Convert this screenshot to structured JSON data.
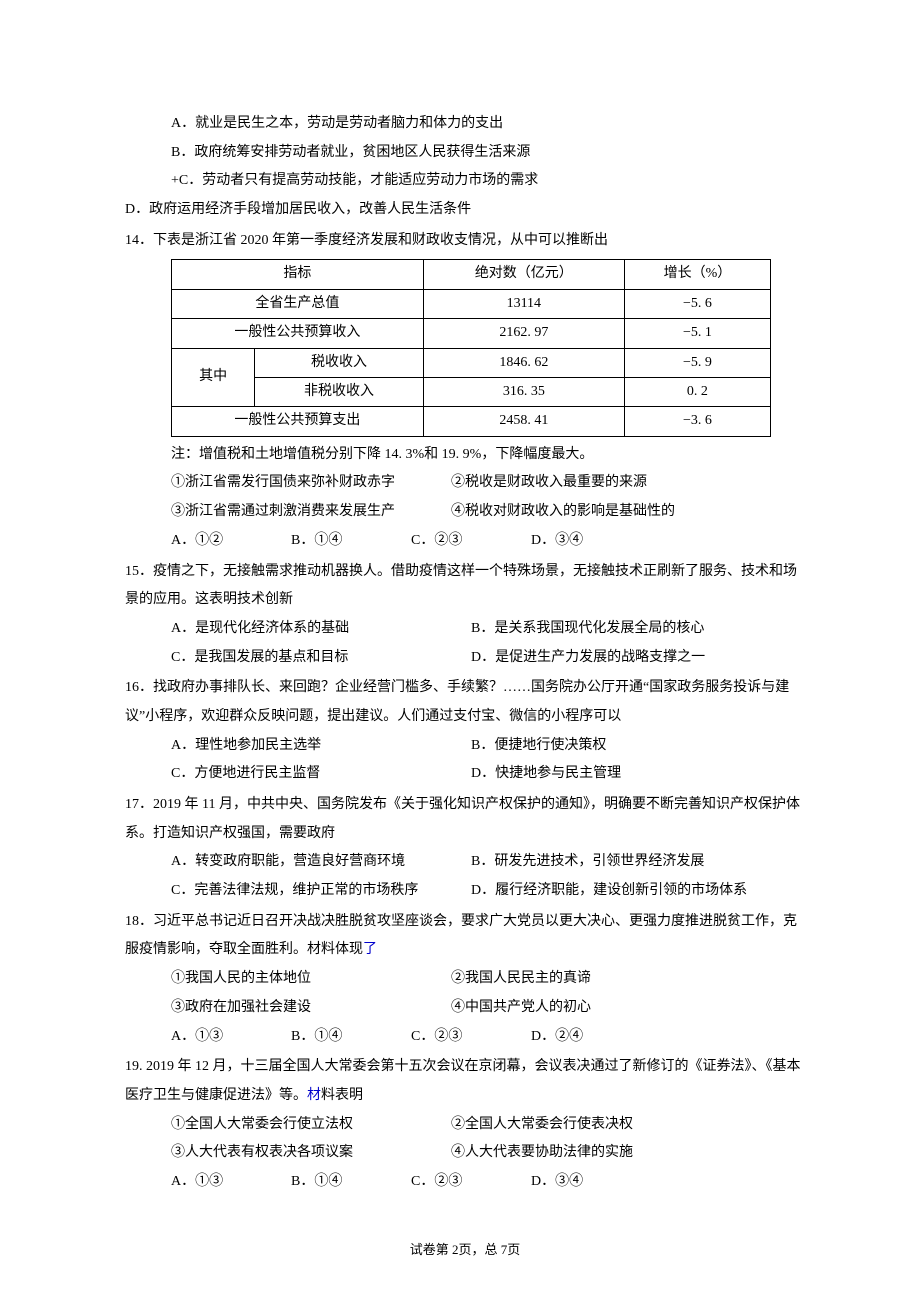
{
  "pre_options": {
    "a": "A．就业是民生之本，劳动是劳动者脑力和体力的支出",
    "b": "B．政府统筹安排劳动者就业，贫困地区人民获得生活来源",
    "c": "+C．劳动者只有提高劳动技能，才能适应劳动力市场的需求",
    "d": "D．政府运用经济手段增加居民收入，改善人民生活条件"
  },
  "q14": {
    "stem": "14．下表是浙江省 2020 年第一季度经济发展和财政收支情况，从中可以推断出",
    "table": {
      "headers": [
        "指标",
        "绝对数（亿元）",
        "增长（%）"
      ],
      "rows": [
        {
          "label": "全省生产总值",
          "abs": "13114",
          "growth": "−5. 6"
        },
        {
          "label": "一般性公共预算收入",
          "abs": "2162. 97",
          "growth": "−5. 1"
        },
        {
          "label_group": "其中",
          "sub": "税收收入",
          "abs": "1846. 62",
          "growth": "−5. 9"
        },
        {
          "sub": "非税收收入",
          "abs": "316. 35",
          "growth": "0. 2"
        },
        {
          "label": "一般性公共预算支出",
          "abs": "2458. 41",
          "growth": "−3. 6"
        }
      ]
    },
    "note": "注：增值税和土地增值税分别下降 14. 3%和 19. 9%，下降幅度最大。",
    "items": {
      "i1": "①浙江省需发行国债来弥补财政赤字",
      "i2": "②税收是财政收入最重要的来源",
      "i3": "③浙江省需通过刺激消费来发展生产",
      "i4": "④税收对财政收入的影响是基础性的"
    },
    "opts": {
      "a": "A．①②",
      "b": "B．①④",
      "c": "C．②③",
      "d": "D．③④"
    }
  },
  "q15": {
    "stem": "15．疫情之下，无接触需求推动机器换人。借助疫情这样一个特殊场景，无接触技术正刷新了服务、技术和场景的应用。这表明技术创新",
    "opts": {
      "a": "A．是现代化经济体系的基础",
      "b": "B．是关系我国现代化发展全局的核心",
      "c": "C．是我国发展的基点和目标",
      "d": "D．是促进生产力发展的战略支撑之一"
    }
  },
  "q16": {
    "stem": "16．找政府办事排队长、来回跑？企业经营门槛多、手续繁？……国务院办公厅开通“国家政务服务投诉与建议”小程序，欢迎群众反映问题，提出建议。人们通过支付宝、微信的小程序可以",
    "opts": {
      "a": "A．理性地参加民主选举",
      "b": "B．便捷地行使决策权",
      "c": "C．方便地进行民主监督",
      "d": "D．快捷地参与民主管理"
    }
  },
  "q17": {
    "stem": "17．2019 年 11 月，中共中央、国务院发布《关于强化知识产权保护的通知》，明确要不断完善知识产权保护体系。打造知识产权强国，需要政府",
    "opts": {
      "a": "A．转变政府职能，营造良好营商环境",
      "b": "B．研发先进技术，引领世界经济发展",
      "c": "C．完善法律法规，维护正常的市场秩序",
      "d": "D．履行经济职能，建设创新引领的市场体系"
    }
  },
  "q18": {
    "stem_pre": "18．习近平总书记近日召开决战决胜脱贫攻坚座谈会，要求广大党员以更大决心、更强力度推进脱贫工作，克服疫情影响，夺取全面胜利。材料体现",
    "stem_blue": "了",
    "items": {
      "i1": "①我国人民的主体地位",
      "i2": "②我国人民民主的真谛",
      "i3": "③政府在加强社会建设",
      "i4": "④中国共产党人的初心"
    },
    "opts": {
      "a": "A．①③",
      "b": "B．①④",
      "c": "C．②③",
      "d": "D．②④"
    }
  },
  "q19": {
    "stem_pre": "19. 2019 年 12 月，十三届全国人大常委会第十五次会议在京闭幕，会议表决通过了新修订的《证券法》、《基本医疗卫生与健康促进法》等。",
    "stem_blue": "材",
    "stem_post": "料表明",
    "items": {
      "i1": "①全国人大常委会行使立法权",
      "i2": "②全国人大常委会行使表决权",
      "i3": "③人大代表有权表决各项议案",
      "i4": "④人大代表要协助法律的实施"
    },
    "opts": {
      "a": "A．①③",
      "b": "B．①④",
      "c": "C．②③",
      "d": "D．③④"
    }
  },
  "footer": "试卷第 2页，总 7页"
}
